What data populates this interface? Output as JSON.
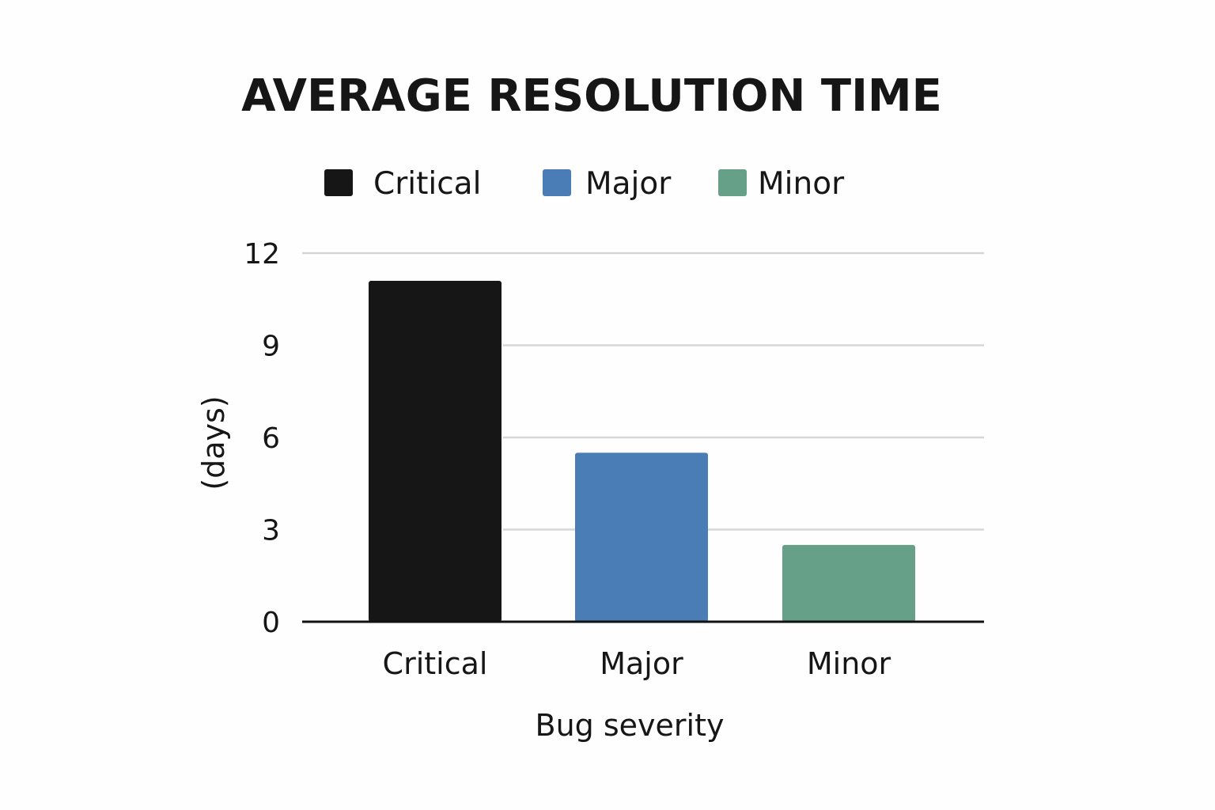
{
  "chart_data": {
    "type": "bar",
    "title": "AVERAGE RESOLUTION TIME",
    "xlabel": "Bug severity",
    "ylabel": "(days)",
    "categories": [
      "Critical",
      "Major",
      "Minor"
    ],
    "values": [
      11.1,
      5.5,
      2.5
    ],
    "colors": [
      "#161616",
      "#4a7db5",
      "#67a088"
    ],
    "legend": {
      "placement": "top-center",
      "entries": [
        "Critical",
        "Major",
        "Minor"
      ]
    },
    "ylim": [
      0,
      12
    ],
    "yticks": [
      0,
      3,
      6,
      9,
      12
    ],
    "grid": true
  }
}
